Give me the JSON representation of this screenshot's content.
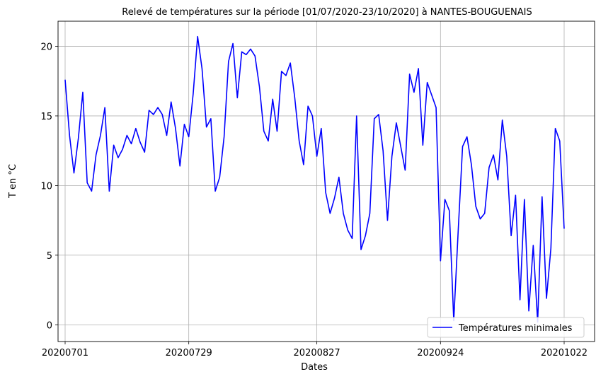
{
  "chart_data": {
    "type": "line",
    "title": "Relevé de températures sur la période [01/07/2020-23/10/2020] à NANTES-BOUGUENAIS",
    "xlabel": "Dates",
    "ylabel": "T en °C",
    "x_tick_labels": [
      "20200701",
      "20200729",
      "20200827",
      "20200924",
      "20201022"
    ],
    "y_tick_labels": [
      "0",
      "5",
      "10",
      "15",
      "20"
    ],
    "y_ticks": [
      0,
      5,
      10,
      15,
      20
    ],
    "ylim": [
      -1.2,
      21.8
    ],
    "grid": true,
    "legend_position": "bottom-right",
    "series": [
      {
        "name": "Températures minimales",
        "color": "#0000ff",
        "x": [
          "2020-07-01",
          "2020-07-02",
          "2020-07-03",
          "2020-07-04",
          "2020-07-05",
          "2020-07-06",
          "2020-07-07",
          "2020-07-08",
          "2020-07-09",
          "2020-07-10",
          "2020-07-11",
          "2020-07-12",
          "2020-07-13",
          "2020-07-14",
          "2020-07-15",
          "2020-07-16",
          "2020-07-17",
          "2020-07-18",
          "2020-07-19",
          "2020-07-20",
          "2020-07-21",
          "2020-07-22",
          "2020-07-23",
          "2020-07-24",
          "2020-07-25",
          "2020-07-26",
          "2020-07-27",
          "2020-07-28",
          "2020-07-29",
          "2020-07-30",
          "2020-07-31",
          "2020-08-01",
          "2020-08-02",
          "2020-08-03",
          "2020-08-04",
          "2020-08-05",
          "2020-08-06",
          "2020-08-07",
          "2020-08-08",
          "2020-08-09",
          "2020-08-10",
          "2020-08-11",
          "2020-08-12",
          "2020-08-13",
          "2020-08-14",
          "2020-08-15",
          "2020-08-16",
          "2020-08-17",
          "2020-08-18",
          "2020-08-19",
          "2020-08-20",
          "2020-08-21",
          "2020-08-22",
          "2020-08-23",
          "2020-08-24",
          "2020-08-25",
          "2020-08-26",
          "2020-08-27",
          "2020-08-28",
          "2020-08-29",
          "2020-08-30",
          "2020-08-31",
          "2020-09-01",
          "2020-09-02",
          "2020-09-03",
          "2020-09-04",
          "2020-09-05",
          "2020-09-06",
          "2020-09-07",
          "2020-09-08",
          "2020-09-09",
          "2020-09-10",
          "2020-09-11",
          "2020-09-12",
          "2020-09-13",
          "2020-09-14",
          "2020-09-15",
          "2020-09-16",
          "2020-09-17",
          "2020-09-18",
          "2020-09-19",
          "2020-09-20",
          "2020-09-21",
          "2020-09-22",
          "2020-09-23",
          "2020-09-24",
          "2020-09-25",
          "2020-09-26",
          "2020-09-27",
          "2020-09-28",
          "2020-09-29",
          "2020-09-30",
          "2020-10-01",
          "2020-10-02",
          "2020-10-03",
          "2020-10-04",
          "2020-10-05",
          "2020-10-06",
          "2020-10-07",
          "2020-10-08",
          "2020-10-09",
          "2020-10-10",
          "2020-10-11",
          "2020-10-12",
          "2020-10-13",
          "2020-10-14",
          "2020-10-15",
          "2020-10-16",
          "2020-10-17",
          "2020-10-18",
          "2020-10-19",
          "2020-10-20",
          "2020-10-21",
          "2020-10-22"
        ],
        "values": [
          17.6,
          13.6,
          10.9,
          13.4,
          16.7,
          10.2,
          9.6,
          12.2,
          13.6,
          15.6,
          9.6,
          12.9,
          12.0,
          12.6,
          13.6,
          13.0,
          14.1,
          13.1,
          12.4,
          15.4,
          15.1,
          15.6,
          15.1,
          13.6,
          16.0,
          14.1,
          11.4,
          14.4,
          13.5,
          16.6,
          20.7,
          18.4,
          14.2,
          14.8,
          9.6,
          10.6,
          13.5,
          18.9,
          20.2,
          16.3,
          19.6,
          19.4,
          19.8,
          19.3,
          17.1,
          13.9,
          13.2,
          16.2,
          13.9,
          18.2,
          17.9,
          18.8,
          16.3,
          13.2,
          11.5,
          15.7,
          15.0,
          12.1,
          14.1,
          9.5,
          8.0,
          9.1,
          10.6,
          8.0,
          6.8,
          6.2,
          15.0,
          5.4,
          6.4,
          8.0,
          14.8,
          15.1,
          12.5,
          7.5,
          12.1,
          14.5,
          12.8,
          11.1,
          18.0,
          16.7,
          18.4,
          12.9,
          17.4,
          16.5,
          15.6,
          4.6,
          9.0,
          8.2,
          0.3,
          6.7,
          12.8,
          13.5,
          11.5,
          8.5,
          7.6,
          8.0,
          11.3,
          12.2,
          10.4,
          14.7,
          12.1,
          6.4,
          9.3,
          1.8,
          9.0,
          1.0,
          5.7,
          0.2,
          9.2,
          1.9,
          5.5,
          14.1,
          13.2,
          6.9
        ]
      }
    ]
  }
}
